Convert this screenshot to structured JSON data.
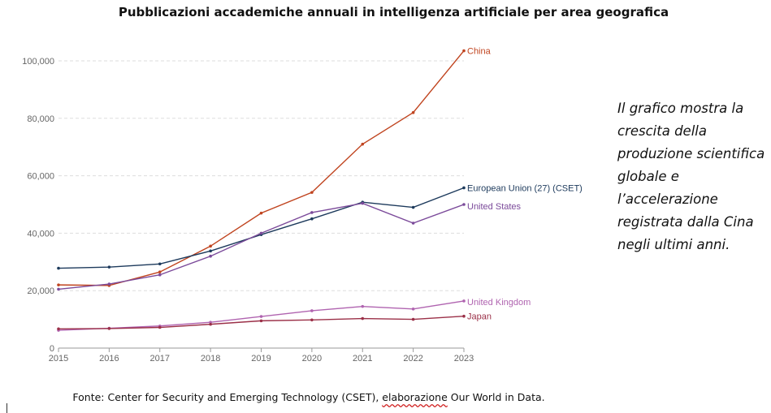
{
  "title": "Pubblicazioni accademiche annuali in intelligenza artificiale per area geografica",
  "caption": "Il grafico mostra la crescita della produzione scientifica globale e l’accelerazione registrata dalla Cina negli ultimi anni.",
  "source": {
    "before": "Fonte: Center for Security and Emerging Technology (CSET), ",
    "underlined": "elaborazione",
    "after": " Our World in Data."
  },
  "chart_data": {
    "type": "line",
    "title": "Pubblicazioni accademiche annuali in intelligenza artificiale per area geografica",
    "xlabel": "",
    "ylabel": "",
    "x": [
      2015,
      2016,
      2017,
      2018,
      2019,
      2020,
      2021,
      2022,
      2023
    ],
    "xtick_labels": [
      "2015",
      "2016",
      "2017",
      "2018",
      "2019",
      "2020",
      "2021",
      "2022",
      "2023"
    ],
    "yticks": [
      0,
      20000,
      40000,
      60000,
      80000,
      100000
    ],
    "ytick_labels": [
      "0",
      "20,000",
      "40,000",
      "60,000",
      "80,000",
      "100,000"
    ],
    "ylim": [
      0,
      100000
    ],
    "grid": "horizontal dashed",
    "legend": "inline labels at line ends (right)",
    "series": [
      {
        "name": "China",
        "color": "#c0441f",
        "values": [
          22000,
          21800,
          26500,
          35500,
          47000,
          54200,
          71000,
          82000,
          103500
        ]
      },
      {
        "name": "European Union (27) (CSET)",
        "color": "#1d3a5c",
        "values": [
          27800,
          28200,
          29300,
          33800,
          39500,
          45000,
          50800,
          49000,
          55800
        ]
      },
      {
        "name": "United States",
        "color": "#7b4a9a",
        "values": [
          20500,
          22300,
          25500,
          32000,
          40000,
          47200,
          50400,
          43500,
          50000
        ]
      },
      {
        "name": "United Kingdom",
        "color": "#b064b0",
        "values": [
          6200,
          6900,
          7700,
          9000,
          11000,
          13000,
          14500,
          13600,
          16400
        ]
      },
      {
        "name": "Japan",
        "color": "#9b3048",
        "values": [
          6700,
          6800,
          7200,
          8300,
          9500,
          9800,
          10300,
          10000,
          11100
        ]
      }
    ]
  }
}
